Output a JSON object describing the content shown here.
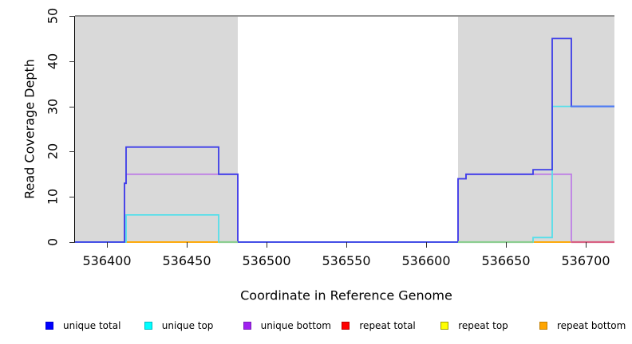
{
  "figure": {
    "kind": "R step plot of read coverage depth across a reference genome window",
    "background": "#FFFFFF",
    "axis_color": "#000000",
    "text_color": "#0A0A0A"
  },
  "chart_data": {
    "type": "line",
    "step": true,
    "title": "",
    "xlabel": "Coordinate in Reference Genome",
    "ylabel": "Read Coverage Depth",
    "xlim": [
      536380,
      536718
    ],
    "ylim": [
      0,
      50
    ],
    "x_ticks": [
      536400,
      536450,
      536500,
      536550,
      536600,
      536650,
      536700
    ],
    "y_ticks": [
      0,
      10,
      20,
      30,
      40,
      50
    ],
    "grid": false,
    "legend_position": "bottom",
    "shaded_regions": [
      {
        "x1": 536380,
        "x2": 536482,
        "color": "#D9D9D9"
      },
      {
        "x1": 536620,
        "x2": 536718,
        "color": "#D9D9D9"
      }
    ],
    "cutoff_line": {
      "y": 50,
      "color": "#949494"
    },
    "series": [
      {
        "name": "repeat total",
        "color": "#E03030",
        "legend_color": "#FF0000",
        "legend_border": "#B80000",
        "points": [
          [
            536380,
            0
          ],
          [
            536718,
            0
          ]
        ]
      },
      {
        "name": "repeat top",
        "color": "#F5F500",
        "legend_color": "#FFFF00",
        "legend_border": "#A0A000",
        "points": [
          [
            536380,
            0
          ],
          [
            536718,
            0
          ]
        ]
      },
      {
        "name": "repeat bottom",
        "color": "#FFA40A",
        "legend_color": "#FFA500",
        "legend_border": "#C27E00",
        "points": [
          [
            536380,
            0
          ],
          [
            536718,
            0
          ]
        ]
      },
      {
        "name": "unique bottom",
        "color": "#BE7FE5",
        "legend_color": "#A020F0",
        "legend_border": "#7A1FB8",
        "points": [
          [
            536380,
            0
          ],
          [
            536411,
            0
          ],
          [
            536411,
            13
          ],
          [
            536412,
            13
          ],
          [
            536412,
            15
          ],
          [
            536482,
            15
          ],
          [
            536482,
            0
          ],
          [
            536620,
            0
          ],
          [
            536620,
            14
          ],
          [
            536625,
            14
          ],
          [
            536625,
            15
          ],
          [
            536691,
            15
          ],
          [
            536691,
            0
          ],
          [
            536718,
            0
          ]
        ]
      },
      {
        "name": "unique top",
        "color": "#55DFEA",
        "legend_color": "#00FFFF",
        "legend_border": "#00B8C2",
        "points": [
          [
            536380,
            0
          ],
          [
            536412,
            0
          ],
          [
            536412,
            6
          ],
          [
            536470,
            6
          ],
          [
            536470,
            0
          ],
          [
            536667,
            0
          ],
          [
            536667,
            1
          ],
          [
            536679,
            1
          ],
          [
            536679,
            30
          ],
          [
            536718,
            30
          ]
        ]
      },
      {
        "name": "unique total",
        "color": "#3D3DE8",
        "legend_color": "#0000FF",
        "legend_border": "#0000CC",
        "points": [
          [
            536380,
            0
          ],
          [
            536411,
            0
          ],
          [
            536411,
            13
          ],
          [
            536412,
            13
          ],
          [
            536412,
            21
          ],
          [
            536470,
            21
          ],
          [
            536470,
            15
          ],
          [
            536482,
            15
          ],
          [
            536482,
            0
          ],
          [
            536620,
            0
          ],
          [
            536620,
            14
          ],
          [
            536625,
            14
          ],
          [
            536625,
            15
          ],
          [
            536667,
            15
          ],
          [
            536667,
            16
          ],
          [
            536679,
            16
          ],
          [
            536679,
            45
          ],
          [
            536691,
            45
          ],
          [
            536691,
            30
          ],
          [
            536718,
            30
          ]
        ]
      }
    ],
    "overlap_segments": [
      {
        "x1": 536470,
        "x2": 536482,
        "y": 0,
        "color": "#8BCE90",
        "note": "unique top over repeat top/bottom at zero"
      },
      {
        "x1": 536620,
        "x2": 536667,
        "y": 0,
        "color": "#8BCE90",
        "note": "unique top over repeat top/bottom at zero"
      },
      {
        "x1": 536691,
        "x2": 536718,
        "y": 0,
        "color": "#D95F82",
        "note": "unique bottom over repeat lines at zero"
      },
      {
        "x1": 536691,
        "x2": 536718,
        "y": 30,
        "color": "#4F7BF2",
        "note": "unique total over unique top at 30"
      }
    ]
  },
  "legend": {
    "items": [
      {
        "label": "unique total",
        "color": "#0000FF",
        "border": "#0000CC"
      },
      {
        "label": "unique top",
        "color": "#00FFFF",
        "border": "#00B8C2"
      },
      {
        "label": "unique bottom",
        "color": "#A020F0",
        "border": "#7A1FB8"
      },
      {
        "label": "repeat total",
        "color": "#FF0000",
        "border": "#B80000"
      },
      {
        "label": "repeat top",
        "color": "#FFFF00",
        "border": "#A0A000"
      },
      {
        "label": "repeat bottom",
        "color": "#FFA500",
        "border": "#C27E00"
      }
    ]
  }
}
